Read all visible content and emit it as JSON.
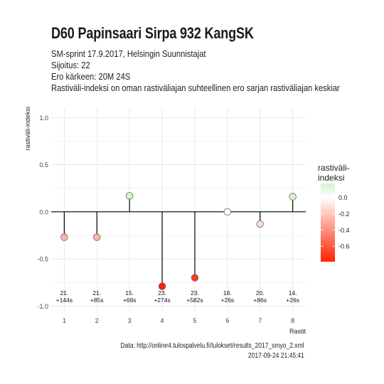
{
  "title": "D60 Papinsaari Sirpa 932 KangSK",
  "subtitle_lines": [
    "SM-sprint 17.9.2017, Helsingin Suunnistajat",
    "Sijoitus: 22",
    "Ero kärkeen: 20M 24S",
    "Rastiväli-indeksi on oman rastiväliajan suhteellinen ero sarjan rastiväliajan keskiar"
  ],
  "caption": {
    "source": "Data: http://online4.tulospalvelu.fi/tulokset/results_2017_smyo_2.xml",
    "timestamp": "2017-09-24 21:45:41"
  },
  "chart_data": {
    "type": "lollipop",
    "xlabel": "Rastit",
    "ylabel": "rastiväli-indeksi",
    "x": [
      1,
      2,
      3,
      4,
      5,
      6,
      7,
      8
    ],
    "values": [
      -0.27,
      -0.27,
      0.17,
      -0.79,
      -0.7,
      0.0,
      -0.13,
      0.16
    ],
    "point_labels": [
      [
        "21.",
        "+144s"
      ],
      [
        "21.",
        "+85s"
      ],
      [
        "15.",
        "+69s"
      ],
      [
        "23.",
        "+274s"
      ],
      [
        "23.",
        "+582s"
      ],
      [
        "18.",
        "+26s"
      ],
      [
        "20.",
        "+86s"
      ],
      [
        "14.",
        "+26s"
      ]
    ],
    "ylim": [
      -1.0,
      1.0
    ],
    "yticks": [
      -1.0,
      -0.5,
      0.0,
      0.5,
      1.0
    ],
    "ytick_labels": [
      "-1.0",
      "-0.5",
      "0.0",
      "0.5",
      "1.0"
    ],
    "xtick_labels": [
      "1",
      "2",
      "3",
      "4",
      "5",
      "6",
      "7",
      "8"
    ],
    "grid": true,
    "legend": {
      "title_lines": [
        "rastiväli-",
        "indeksi"
      ],
      "position": "right",
      "ticks": [
        0.0,
        -0.2,
        -0.4,
        -0.6
      ],
      "tick_labels": [
        "0.0",
        "-0.2",
        "-0.4",
        "-0.6"
      ],
      "range": [
        -0.79,
        0.17
      ]
    },
    "colors": {
      "low": "#ff2200",
      "mid": "#ffffff",
      "high": "#d2f5cc"
    }
  }
}
